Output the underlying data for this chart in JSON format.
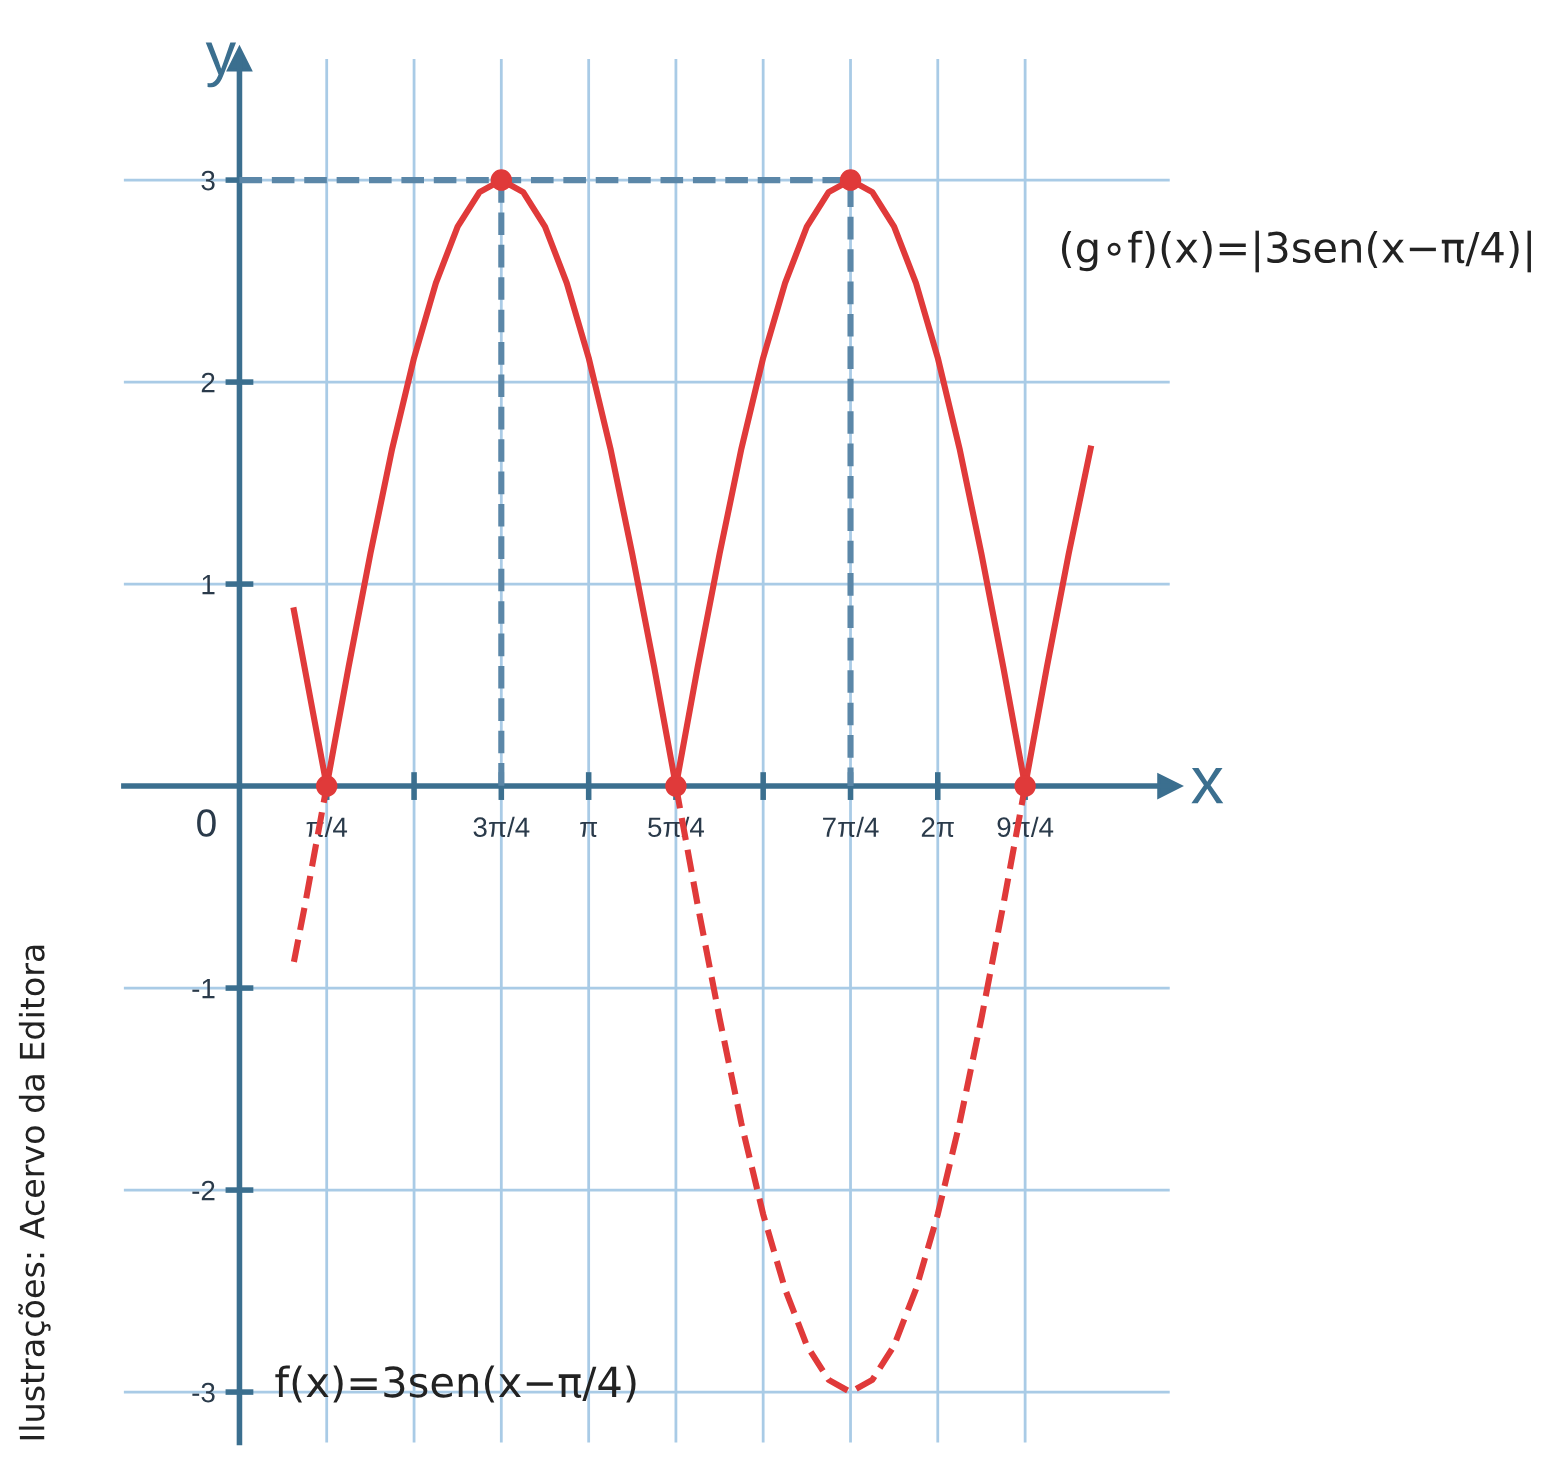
{
  "chart_data": {
    "type": "line",
    "xlabel": "x",
    "ylabel": "y",
    "xlim": [
      -1.04,
      8.37
    ],
    "ylim": [
      -3.25,
      3.6
    ],
    "xticks": [
      {
        "value": 0.785,
        "label": "π/4"
      },
      {
        "value": 1.571,
        "label": null
      },
      {
        "value": 2.356,
        "label": "3π/4"
      },
      {
        "value": 3.142,
        "label": "π"
      },
      {
        "value": 3.927,
        "label": "5π/4"
      },
      {
        "value": 4.712,
        "label": null
      },
      {
        "value": 5.498,
        "label": "7π/4"
      },
      {
        "value": 6.283,
        "label": "2π"
      },
      {
        "value": 7.069,
        "label": "9π/4"
      }
    ],
    "yticks": [
      -3,
      -2,
      -1,
      1,
      2,
      3
    ],
    "grid": true,
    "series": [
      {
        "color": "#5b87a8",
        "line_style": "dashed",
        "x": [
          0,
          5.498,
          5.498
        ],
        "values": [
          3,
          3,
          0
        ]
      },
      {
        "color": "#5b87a8",
        "line_style": "dashed",
        "x": [
          2.356,
          2.356
        ],
        "values": [
          3,
          0
        ]
      },
      {
        "color": "#e03a3a",
        "line_style": "dashed",
        "x": [
          0.49,
          0.589,
          0.785
        ],
        "values": [
          -0.87,
          -0.59,
          0
        ]
      },
      {
        "color": "#e03a3a",
        "line_style": "dashed",
        "x": [
          3.927,
          4.123,
          4.32,
          4.516,
          4.712,
          4.909,
          5.105,
          5.301,
          5.498,
          5.694,
          5.89,
          6.087,
          6.283,
          6.479,
          6.676,
          6.872,
          7.069
        ],
        "values": [
          0,
          -0.59,
          -1.15,
          -1.67,
          -2.12,
          -2.49,
          -2.77,
          -2.94,
          -3,
          -2.94,
          -2.77,
          -2.49,
          -2.12,
          -1.67,
          -1.15,
          -0.59,
          0
        ]
      },
      {
        "color": "#e03a3a",
        "line_style": "solid",
        "x": [
          0.49,
          0.785,
          0.982,
          1.178,
          1.374,
          1.571,
          1.767,
          1.963,
          2.16,
          2.356,
          2.553,
          2.749,
          2.945,
          3.142,
          3.338,
          3.534,
          3.731,
          3.927,
          4.123,
          4.32,
          4.516,
          4.712,
          4.909,
          5.105,
          5.301,
          5.498,
          5.694,
          5.89,
          6.087,
          6.283,
          6.479,
          6.676,
          6.872,
          7.069,
          7.265,
          7.461,
          7.658
        ],
        "values": [
          0.87,
          0,
          0.59,
          1.15,
          1.67,
          2.12,
          2.49,
          2.77,
          2.94,
          3,
          2.94,
          2.77,
          2.49,
          2.12,
          1.67,
          1.15,
          0.59,
          0,
          0.59,
          1.15,
          1.67,
          2.12,
          2.49,
          2.77,
          2.94,
          3,
          2.94,
          2.77,
          2.49,
          2.12,
          1.67,
          1.15,
          0.59,
          0,
          0.59,
          1.15,
          1.67
        ]
      },
      {
        "type": "scatter",
        "color": "#e03a3a",
        "marker": "circle",
        "x": [
          0.785,
          2.356,
          3.927,
          5.498,
          7.069
        ],
        "values": [
          0,
          3,
          0,
          3,
          0
        ]
      }
    ],
    "annotations": [
      "(g∘f)(x)=|3sen(x−π/4)|",
      "f(x)=3sen(x−π/4)",
      "Ilustrações: Acervo da Editora",
      "0"
    ]
  }
}
